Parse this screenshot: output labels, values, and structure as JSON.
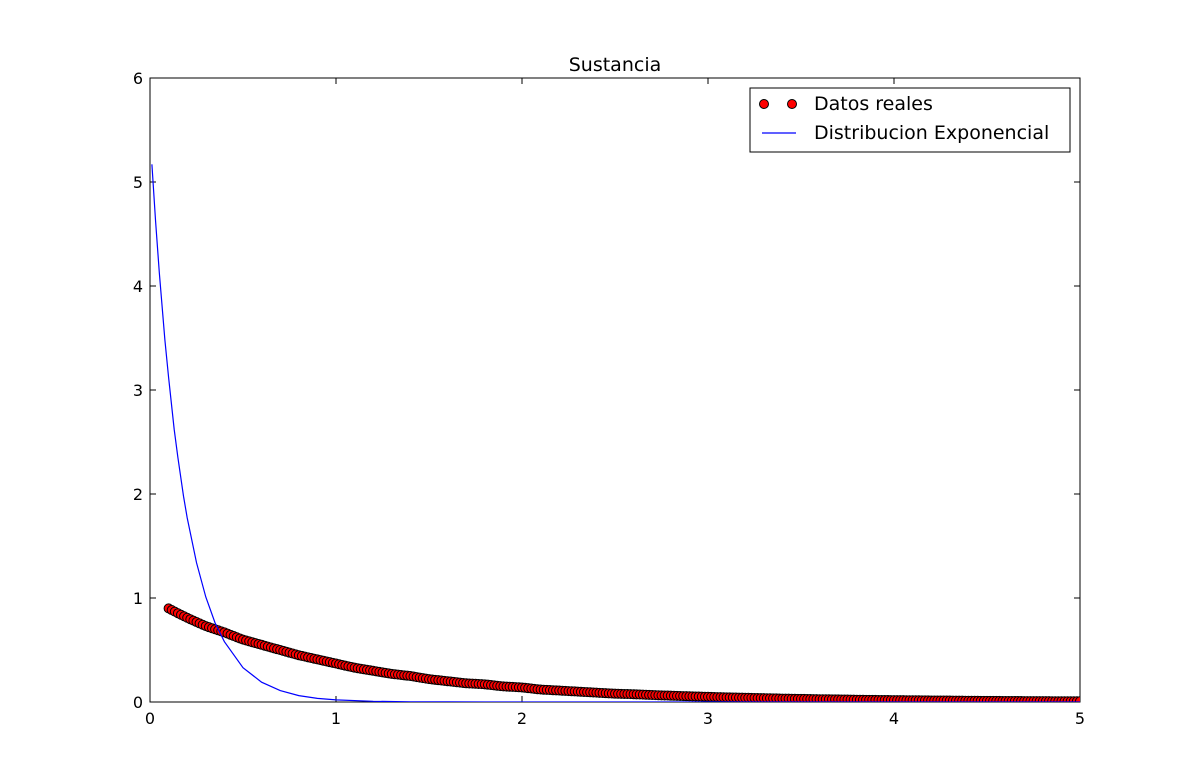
{
  "chart_data": {
    "type": "scatter",
    "title": "Sustancia",
    "xlabel": "",
    "ylabel": "",
    "xlim": [
      0,
      5
    ],
    "ylim": [
      0,
      6
    ],
    "x_ticks": [
      "0",
      "1",
      "2",
      "3",
      "4",
      "5"
    ],
    "y_ticks": [
      "0",
      "1",
      "2",
      "3",
      "4",
      "5",
      "6"
    ],
    "grid": false,
    "legend_position": "top-right",
    "series": [
      {
        "name": "Datos reales",
        "kind": "points",
        "color": "#ff0000",
        "edge_color": "#000000",
        "x": [
          0.1,
          0.2,
          0.3,
          0.4,
          0.5,
          0.6,
          0.7,
          0.8,
          0.9,
          1.0,
          1.1,
          1.2,
          1.3,
          1.4,
          1.5,
          1.6,
          1.7,
          1.8,
          1.9,
          2.0,
          2.1,
          2.2,
          2.3,
          2.4,
          2.5,
          2.6,
          2.7,
          2.8,
          2.9,
          3.0,
          3.1,
          3.2,
          3.3,
          3.4,
          3.5,
          3.6,
          3.7,
          3.8,
          3.9,
          4.0,
          4.1,
          4.2,
          4.3,
          4.4,
          4.5,
          4.6,
          4.7,
          4.8,
          4.9,
          5.0
        ],
        "y": [
          0.9,
          0.81,
          0.73,
          0.67,
          0.6,
          0.55,
          0.5,
          0.45,
          0.41,
          0.37,
          0.33,
          0.3,
          0.27,
          0.25,
          0.22,
          0.2,
          0.18,
          0.17,
          0.15,
          0.14,
          0.12,
          0.11,
          0.1,
          0.09,
          0.08,
          0.075,
          0.067,
          0.061,
          0.055,
          0.05,
          0.045,
          0.041,
          0.037,
          0.033,
          0.03,
          0.027,
          0.025,
          0.022,
          0.02,
          0.018,
          0.017,
          0.015,
          0.014,
          0.012,
          0.011,
          0.01,
          0.009,
          0.008,
          0.0075,
          0.0067
        ]
      },
      {
        "name": "Distribucion Exponencial",
        "kind": "line",
        "color": "#0000ff",
        "x": [
          0.01,
          0.03,
          0.05,
          0.08,
          0.1,
          0.13,
          0.15,
          0.18,
          0.2,
          0.25,
          0.3,
          0.35,
          0.4,
          0.5,
          0.6,
          0.7,
          0.8,
          0.9,
          1.0,
          1.2,
          1.4,
          1.6,
          1.8,
          2.0,
          2.5,
          3.0,
          3.5,
          4.0,
          4.5,
          5.0
        ],
        "y": [
          5.17,
          4.62,
          4.13,
          3.48,
          3.12,
          2.62,
          2.35,
          1.98,
          1.77,
          1.34,
          1.01,
          0.76,
          0.58,
          0.33,
          0.19,
          0.11,
          0.062,
          0.035,
          0.02,
          0.0066,
          0.0021,
          0.0007,
          0.00022,
          7e-05,
          5e-06,
          0.0,
          0.0,
          0.0,
          0.0,
          0.0
        ]
      }
    ]
  }
}
